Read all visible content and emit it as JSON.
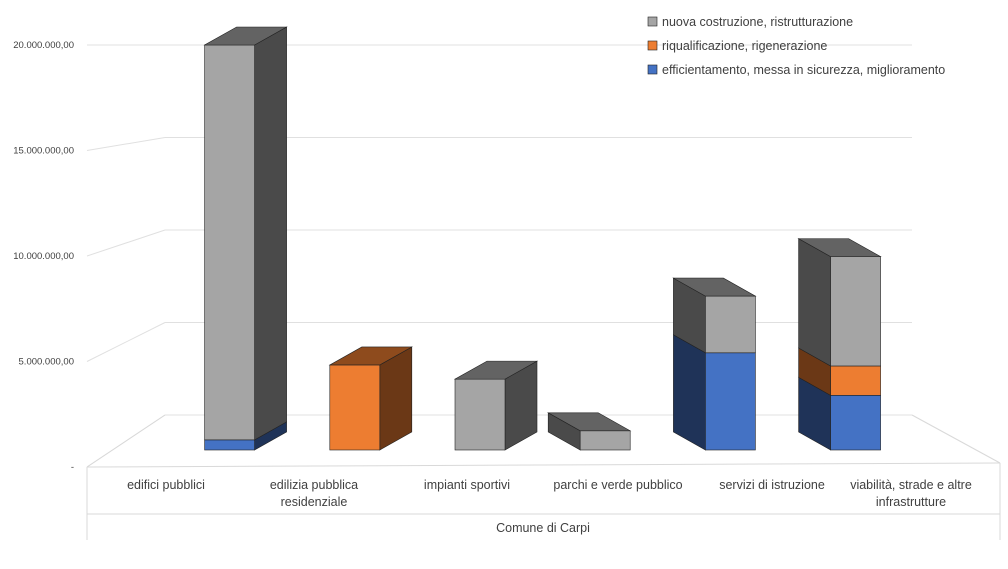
{
  "chart_data": {
    "type": "bar",
    "stacked": true,
    "three_d": true,
    "categories": [
      "edifici pubblici",
      "edilizia pubblica residenziale",
      "impianti sportivi",
      "parchi e verde pubblico",
      "servizi di istruzione",
      "viabilità, strade e altre infrastrutture"
    ],
    "group_label": "Comune di Carpi",
    "series": [
      {
        "name": "efficientamento, messa in sicurezza, miglioramento",
        "color": "#4472c4",
        "values": [
          500000,
          0,
          0,
          0,
          4800000,
          2700000
        ]
      },
      {
        "name": "riqualificazione, rigenerazione",
        "color": "#ed7d31",
        "values": [
          0,
          4200000,
          0,
          0,
          0,
          1450000
        ]
      },
      {
        "name": "nuova costruzione, ristrutturazione",
        "color": "#a5a5a5",
        "values": [
          19500000,
          0,
          3500000,
          950000,
          2800000,
          5400000
        ]
      }
    ],
    "yticks": [
      "-",
      "5.000.000,00",
      "10.000.000,00",
      "15.000.000,00",
      "20.000.000,00"
    ],
    "ylim": [
      0,
      20000000
    ],
    "grid": true,
    "legend_position": "top-right"
  }
}
